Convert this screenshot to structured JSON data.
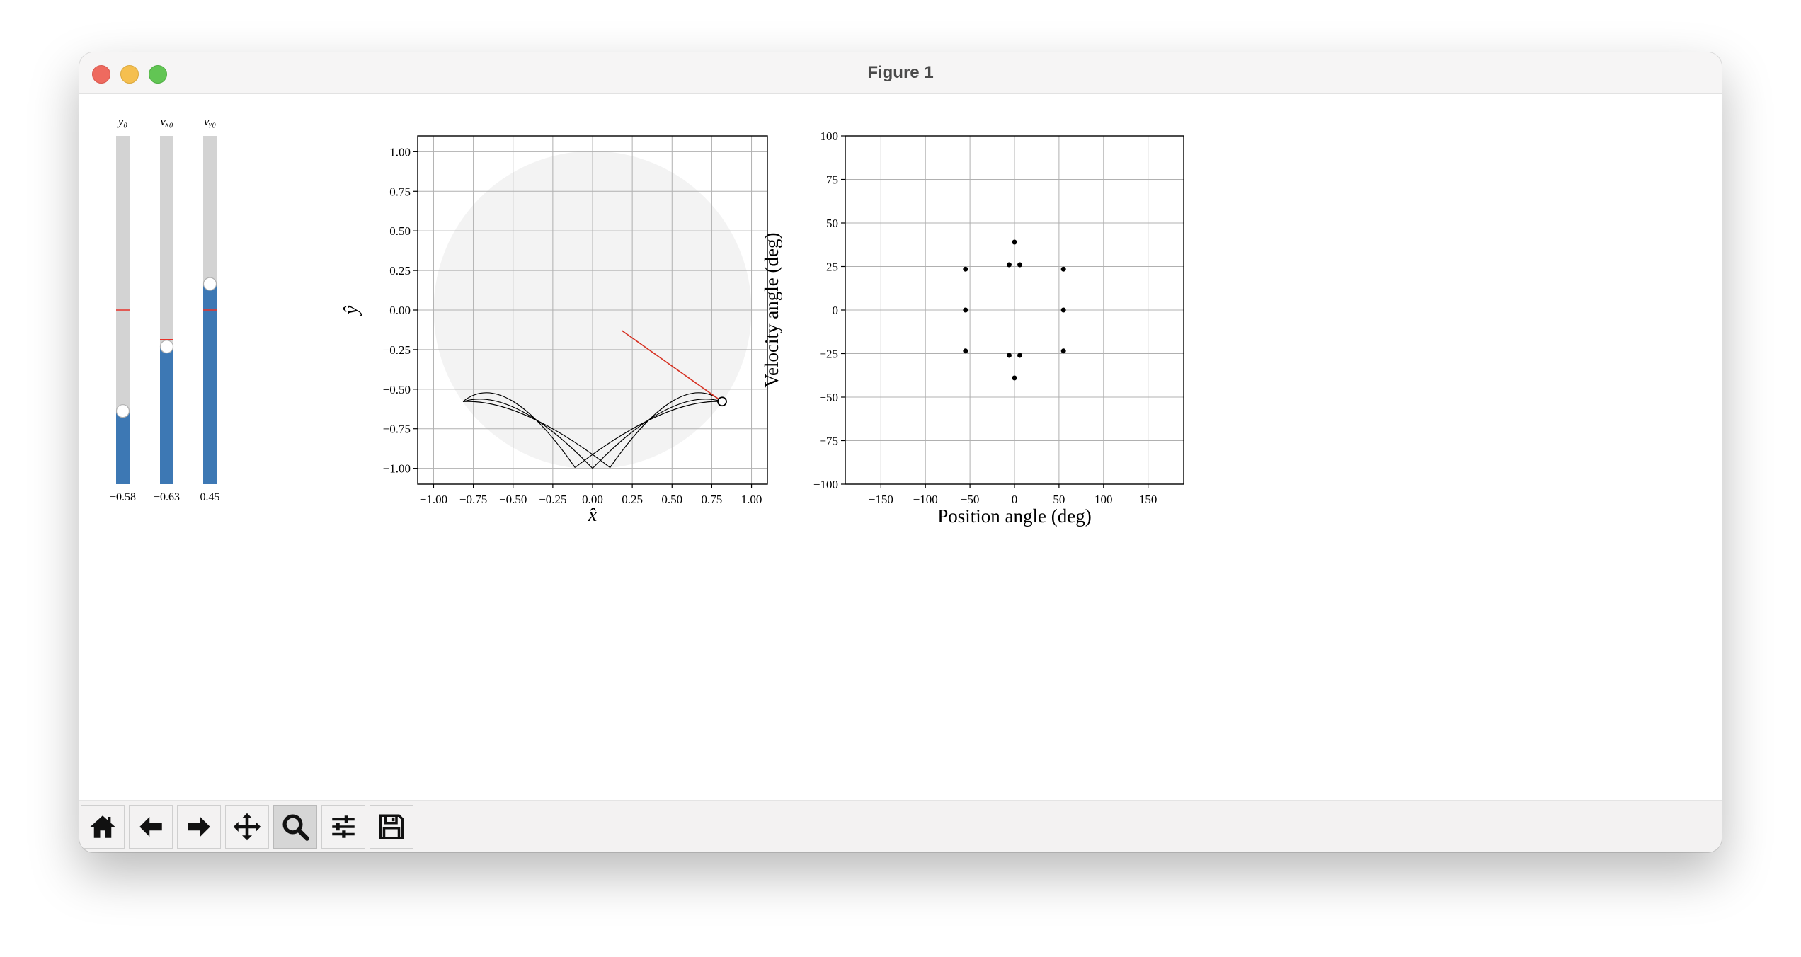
{
  "window": {
    "title": "Figure 1"
  },
  "sliders": [
    {
      "label": "y₀",
      "value_text": "−0.58",
      "fill_fraction": 0.21,
      "init_fraction": 0.5
    },
    {
      "label": "vₓ₀",
      "value_text": "−0.63",
      "fill_fraction": 0.395,
      "init_fraction": 0.415
    },
    {
      "label": "vᵧ₀",
      "value_text": "0.45",
      "fill_fraction": 0.575,
      "init_fraction": 0.5
    }
  ],
  "toolbar": {
    "buttons": [
      {
        "name": "home-button",
        "icon": "home-icon",
        "active": false
      },
      {
        "name": "back-button",
        "icon": "arrow-left-icon",
        "active": false
      },
      {
        "name": "forward-button",
        "icon": "arrow-right-icon",
        "active": false
      },
      {
        "name": "pan-button",
        "icon": "move-icon",
        "active": false
      },
      {
        "name": "zoom-button",
        "icon": "magnifier-icon",
        "active": true
      },
      {
        "name": "configure-button",
        "icon": "sliders-icon",
        "active": false
      },
      {
        "name": "save-button",
        "icon": "floppy-icon",
        "active": false
      }
    ]
  },
  "chart_data": [
    {
      "type": "line",
      "xlabel": "x̂",
      "ylabel": "ŷ",
      "xlim": [
        -1.1,
        1.1
      ],
      "ylim": [
        -1.1,
        1.1
      ],
      "xticks": [
        -1.0,
        -0.75,
        -0.5,
        -0.25,
        0.0,
        0.25,
        0.5,
        0.75,
        1.0
      ],
      "yticks": [
        -1.0,
        -0.75,
        -0.5,
        -0.25,
        0.0,
        0.25,
        0.5,
        0.75,
        1.0
      ],
      "xtick_labels": [
        "−1.00",
        "−0.75",
        "−0.50",
        "−0.25",
        "0.00",
        "0.25",
        "0.50",
        "0.75",
        "1.00"
      ],
      "ytick_labels": [
        "−1.00",
        "−0.75",
        "−0.50",
        "−0.25",
        "0.00",
        "0.25",
        "0.50",
        "0.75",
        "1.00"
      ],
      "grid": true,
      "boundary_circle": {
        "center": [
          0,
          0
        ],
        "radius": 1.0,
        "color": "#f3f3f3"
      },
      "trajectory_color": "#000000",
      "trajectory_arcs": [
        [
          [
            -0.815,
            -0.578
          ],
          [
            -0.55,
            -0.36
          ],
          [
            -0.11,
            -0.995
          ]
        ],
        [
          [
            -0.815,
            -0.578
          ],
          [
            -0.5,
            -0.48
          ],
          [
            0.0,
            -1.0
          ]
        ],
        [
          [
            -0.815,
            -0.578
          ],
          [
            -0.45,
            -0.56
          ],
          [
            0.11,
            -0.995
          ]
        ],
        [
          [
            0.815,
            -0.578
          ],
          [
            0.55,
            -0.36
          ],
          [
            0.11,
            -0.995
          ]
        ],
        [
          [
            0.815,
            -0.578
          ],
          [
            0.5,
            -0.48
          ],
          [
            0.0,
            -1.0
          ]
        ],
        [
          [
            0.815,
            -0.578
          ],
          [
            0.45,
            -0.56
          ],
          [
            -0.11,
            -0.995
          ]
        ]
      ],
      "start_point": [
        0.815,
        -0.578
      ],
      "velocity_line": {
        "from": [
          0.815,
          -0.578
        ],
        "to": [
          0.185,
          -0.13
        ],
        "color": "#d62f20"
      }
    },
    {
      "type": "scatter",
      "xlabel": "Position angle (deg)",
      "ylabel": "Velocity angle (deg)",
      "xlim": [
        -190,
        190
      ],
      "ylim": [
        -100,
        100
      ],
      "xticks": [
        -150,
        -100,
        -50,
        0,
        50,
        100,
        150
      ],
      "yticks": [
        -100,
        -75,
        -50,
        -25,
        0,
        25,
        50,
        75,
        100
      ],
      "xtick_labels": [
        "−150",
        "−100",
        "−50",
        "0",
        "50",
        "100",
        "150"
      ],
      "ytick_labels": [
        "−100",
        "−75",
        "−50",
        "−25",
        "0",
        "25",
        "50",
        "75",
        "100"
      ],
      "grid": true,
      "color": "#000000",
      "points": [
        [
          -55,
          23.5
        ],
        [
          -55,
          0
        ],
        [
          -55,
          -23.5
        ],
        [
          55,
          23.5
        ],
        [
          55,
          0
        ],
        [
          55,
          -23.5
        ],
        [
          -6,
          26
        ],
        [
          6,
          26
        ],
        [
          0,
          39
        ],
        [
          -6,
          -26
        ],
        [
          6,
          -26
        ],
        [
          0,
          -39
        ]
      ]
    }
  ]
}
